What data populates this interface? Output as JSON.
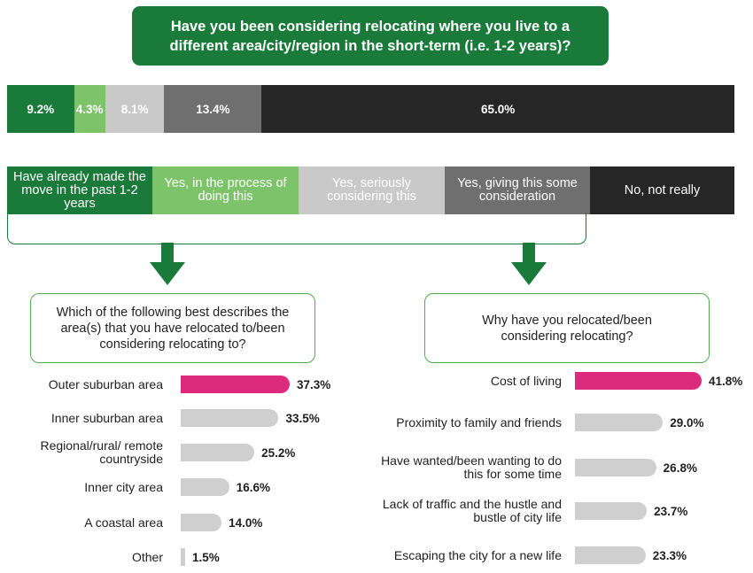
{
  "title": "Have you been considering relocating where you live to a different area/city/region in the short-term (i.e. 1-2 years)?",
  "colors": {
    "dark_green": "#1a7a3a",
    "light_green": "#7cc36a",
    "light_grey": "#c9c9c9",
    "mid_grey": "#6f6f6f",
    "black": "#262626",
    "pink": "#de2a7d",
    "bar_grey": "#cfcfcf"
  },
  "chart_data": [
    {
      "type": "bar",
      "orientation": "horizontal-stacked",
      "title": "Have you been considering relocating where you live to a different area/city/region in the short-term (i.e. 1-2 years)?",
      "categories": [
        "Have already made the move in the past 1-2 years",
        "Yes, in the process of doing this",
        "Yes, seriously considering this",
        "Yes, giving this some consideration",
        "No, not really"
      ],
      "values": [
        9.2,
        4.3,
        8.1,
        13.4,
        65.0
      ],
      "labels": [
        "9.2%",
        "4.3%",
        "8.1%",
        "13.4%",
        "65.0%"
      ],
      "series_colors": [
        "#1a7a3a",
        "#7cc36a",
        "#c9c9c9",
        "#6f6f6f",
        "#262626"
      ],
      "label_colors": [
        "#ffffff",
        "#ffffff",
        "#ffffff",
        "#ffffff",
        "#ffffff"
      ],
      "xlim": [
        0,
        100
      ]
    },
    {
      "type": "bar",
      "orientation": "horizontal",
      "title": "Which of the following best describes the area(s) that you have relocated to/been considering relocating to?",
      "categories": [
        "Outer suburban area",
        "Inner suburban area",
        "Regional/rural/ remote countryside",
        "Inner city area",
        "A coastal area",
        "Other"
      ],
      "values": [
        37.3,
        33.5,
        25.2,
        16.6,
        14.0,
        1.5
      ],
      "labels": [
        "37.3%",
        "33.5%",
        "25.2%",
        "16.6%",
        "14.0%",
        "1.5%"
      ],
      "xlim": [
        0,
        37.3
      ]
    },
    {
      "type": "bar",
      "orientation": "horizontal",
      "title": "Why have you relocated/been considering relocating?",
      "categories": [
        "Cost of living",
        "Proximity to family and friends",
        "Have wanted/been wanting to do this for some time",
        "Lack of traffic and the hustle and bustle of city life",
        "Escaping the city for a new life"
      ],
      "values": [
        41.8,
        29.0,
        26.8,
        23.7,
        23.3
      ],
      "labels": [
        "41.8%",
        "29.0%",
        "26.8%",
        "23.7%",
        "23.3%"
      ],
      "xlim": [
        0,
        41.8
      ]
    }
  ]
}
